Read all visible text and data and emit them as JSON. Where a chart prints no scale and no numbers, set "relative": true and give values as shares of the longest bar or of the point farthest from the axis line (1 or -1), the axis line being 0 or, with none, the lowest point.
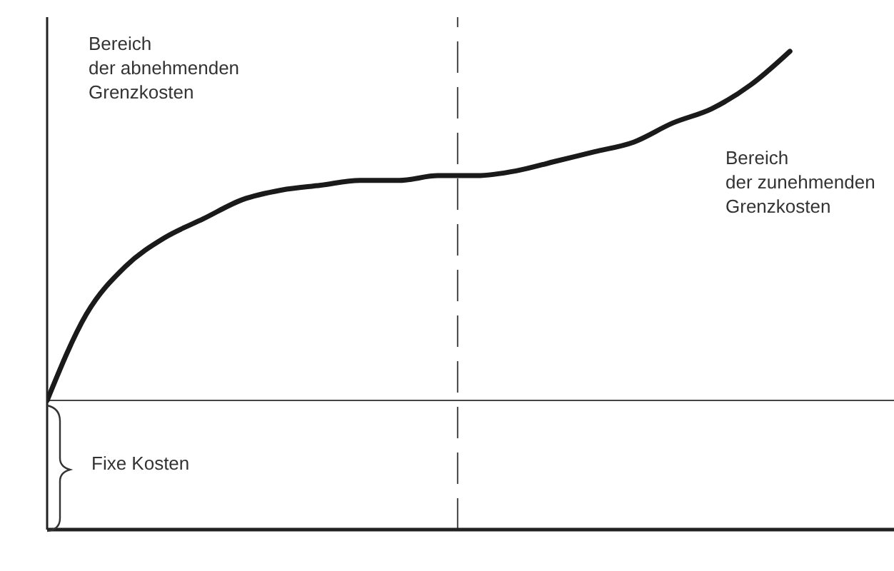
{
  "chart_data": {
    "type": "line",
    "relative": true,
    "categories": [
      null,
      null,
      null,
      null,
      null,
      null,
      null,
      null,
      null,
      null,
      null,
      null,
      null,
      null,
      null,
      null,
      null,
      null,
      null,
      null
    ],
    "series": [
      {
        "color": "#1a1a1a",
        "values": [
          0.27,
          0.45,
          0.55,
          0.61,
          0.65,
          0.69,
          0.71,
          0.72,
          0.73,
          0.73,
          0.74,
          0.74,
          0.75,
          0.77,
          0.79,
          0.81,
          0.85,
          0.88,
          0.93,
          1
        ]
      }
    ],
    "ref_lines": [
      {
        "axis": "y",
        "value": 0.27,
        "color": "#444444",
        "line_style": "solid"
      }
    ],
    "annotations": [
      "Bereich\nder abnehmenden\nGrenzkosten",
      "Bereich\nder zunehmenden\nGrenzkosten",
      "Fixe Kosten"
    ],
    "marker": "none",
    "line_style": "solid",
    "grid": false,
    "legend": false
  }
}
